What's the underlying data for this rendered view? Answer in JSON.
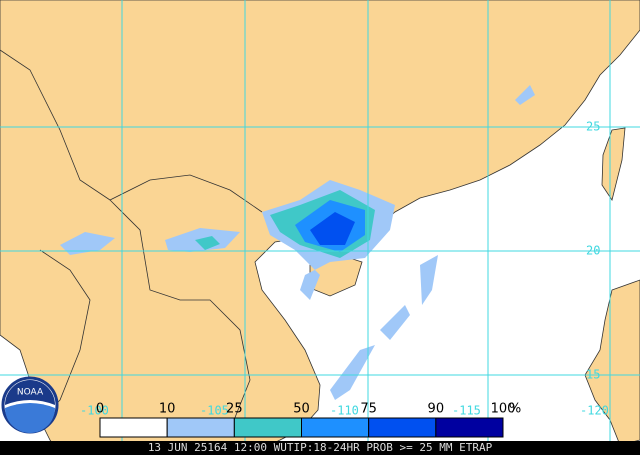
{
  "map": {
    "lat_labels": [
      "25",
      "20",
      "15"
    ],
    "lon_labels": [
      "-100",
      "-105",
      "-110",
      "-115",
      "-120"
    ],
    "logo": "NOAA"
  },
  "legend": {
    "ticks": [
      0,
      10,
      25,
      50,
      75,
      90,
      100
    ],
    "unit": "%",
    "colors": [
      "#ffffff",
      "#a0c8f8",
      "#40c8c8",
      "#1e90ff",
      "#0050f0",
      "#0000a0"
    ]
  },
  "caption": "13 JUN 25164 12:00 WUTIP:18-24HR PROB >= 25 MM ETRAP"
}
